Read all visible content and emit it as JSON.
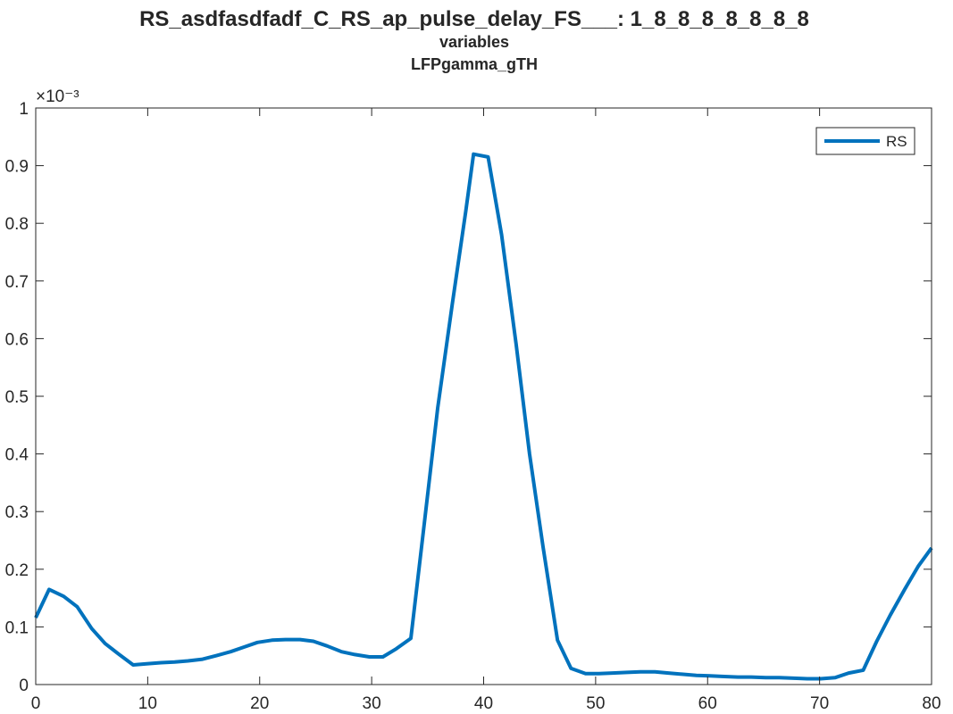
{
  "chart_data": {
    "type": "line",
    "title": "RS_asdfasdfadf_C_RS_ap_pulse_delay_FS___: 1_8_8_8_8_8_8_8",
    "subtitle_lines": [
      "variables",
      "LFPgamma_gTH"
    ],
    "xlabel": "",
    "ylabel": "",
    "xlim": [
      0,
      80
    ],
    "ylim": [
      0,
      1
    ],
    "y_exponent_label": "×10⁻³",
    "x_ticks": [
      0,
      10,
      20,
      30,
      40,
      50,
      60,
      70,
      80
    ],
    "x_tick_labels": [
      "0",
      "10",
      "20",
      "30",
      "40",
      "50",
      "60",
      "70",
      "80"
    ],
    "y_ticks": [
      0,
      0.1,
      0.2,
      0.3,
      0.4,
      0.5,
      0.6,
      0.7,
      0.8,
      0.9,
      1
    ],
    "y_tick_labels": [
      "0",
      "0.1",
      "0.2",
      "0.3",
      "0.4",
      "0.5",
      "0.6",
      "0.7",
      "0.8",
      "0.9",
      "1"
    ],
    "grid": false,
    "legend_position": "top-right",
    "series": [
      {
        "name": "RS",
        "color": "#0072BD",
        "x": [
          0,
          1.2,
          2.5,
          3.7,
          5,
          6.2,
          7.4,
          8.7,
          9.9,
          11.2,
          12.4,
          13.6,
          14.9,
          16.1,
          17.4,
          18.6,
          19.8,
          21.1,
          22.3,
          23.6,
          24.8,
          26,
          27.3,
          28.5,
          29.8,
          31,
          32.2,
          33.5,
          34.7,
          35.9,
          37.2,
          38.4,
          39.1,
          40.4,
          41.6,
          42.9,
          44.1,
          45.3,
          46.6,
          47.8,
          49.1,
          50.3,
          51.5,
          52.8,
          54,
          55.3,
          56.5,
          57.7,
          59,
          60.2,
          61.5,
          62.7,
          63.9,
          65.2,
          66.4,
          67.7,
          68.9,
          70.1,
          71.4,
          72.6,
          73.9,
          75.1,
          76.3,
          77.6,
          78.8,
          80
        ],
        "values": [
          0.116,
          0.165,
          0.153,
          0.135,
          0.097,
          0.071,
          0.053,
          0.034,
          0.036,
          0.038,
          0.039,
          0.041,
          0.044,
          0.05,
          0.057,
          0.065,
          0.073,
          0.077,
          0.078,
          0.078,
          0.075,
          0.067,
          0.057,
          0.052,
          0.048,
          0.048,
          0.062,
          0.08,
          0.28,
          0.48,
          0.66,
          0.82,
          0.92,
          0.915,
          0.78,
          0.59,
          0.4,
          0.24,
          0.077,
          0.028,
          0.019,
          0.019,
          0.02,
          0.021,
          0.022,
          0.022,
          0.02,
          0.018,
          0.016,
          0.015,
          0.014,
          0.013,
          0.013,
          0.012,
          0.012,
          0.011,
          0.01,
          0.01,
          0.012,
          0.02,
          0.025,
          0.075,
          0.12,
          0.165,
          0.205,
          0.237
        ]
      }
    ]
  }
}
